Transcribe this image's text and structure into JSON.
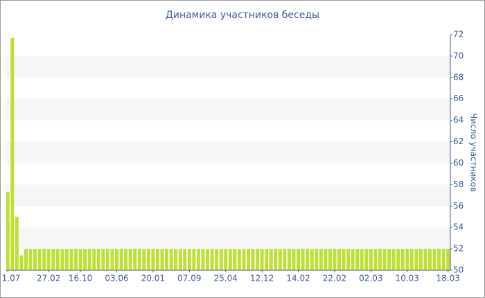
{
  "chart_data": {
    "type": "bar",
    "title": "Динамика участников беседы",
    "y_label": "Число участников",
    "categories": [
      "1.07",
      null,
      null,
      null,
      null,
      null,
      null,
      null,
      null,
      "27.02",
      null,
      null,
      null,
      null,
      null,
      null,
      "16.10",
      null,
      null,
      null,
      null,
      null,
      null,
      null,
      "03.06",
      null,
      null,
      null,
      null,
      null,
      null,
      null,
      "20.01",
      null,
      null,
      null,
      null,
      null,
      null,
      null,
      "07.09",
      null,
      null,
      null,
      null,
      null,
      null,
      null,
      "25.04",
      null,
      null,
      null,
      null,
      null,
      null,
      null,
      "12.12",
      null,
      null,
      null,
      null,
      null,
      null,
      null,
      "14.02",
      null,
      null,
      null,
      null,
      null,
      null,
      null,
      "22.02",
      null,
      null,
      null,
      null,
      null,
      null,
      null,
      "02.03",
      null,
      null,
      null,
      null,
      null,
      null,
      null,
      "10.03",
      null,
      null,
      null,
      null,
      null,
      null,
      null,
      null,
      "18.03"
    ],
    "values": [
      57.3,
      71.7,
      55,
      51.4,
      52,
      52,
      52,
      52,
      52,
      52,
      52,
      52,
      52,
      52,
      52,
      52,
      52,
      52,
      52,
      52,
      52,
      52,
      52,
      52,
      52,
      52,
      52,
      52,
      52,
      52,
      52,
      52,
      52,
      52,
      52,
      52,
      52,
      52,
      52,
      52,
      52,
      52,
      52,
      52,
      52,
      52,
      52,
      52,
      52,
      52,
      52,
      52,
      52,
      52,
      52,
      52,
      52,
      52,
      52,
      52,
      52,
      52,
      52,
      52,
      52,
      52,
      52,
      52,
      52,
      52,
      52,
      52,
      52,
      52,
      52,
      52,
      52,
      52,
      52,
      52,
      52,
      52,
      52,
      52,
      52,
      52,
      52,
      52,
      52,
      52,
      52,
      52,
      52,
      52,
      52,
      52,
      52,
      52
    ],
    "color": "#bde035",
    "ylim": [
      50,
      72
    ],
    "yticks": [
      50,
      52,
      54,
      56,
      58,
      60,
      62,
      64,
      66,
      68,
      70,
      72
    ],
    "grid": "bands",
    "y_axis_side": "right"
  }
}
